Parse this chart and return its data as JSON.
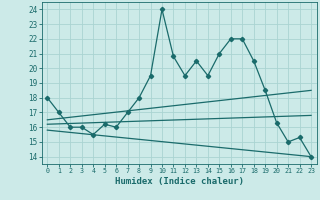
{
  "xlabel": "Humidex (Indice chaleur)",
  "ylabel": "",
  "background_color": "#cceae8",
  "grid_color": "#aad4d2",
  "line_color": "#1a6b6b",
  "xlim": [
    -0.5,
    23.5
  ],
  "ylim": [
    13.5,
    24.5
  ],
  "yticks": [
    14,
    15,
    16,
    17,
    18,
    19,
    20,
    21,
    22,
    23,
    24
  ],
  "xticks": [
    0,
    1,
    2,
    3,
    4,
    5,
    6,
    7,
    8,
    9,
    10,
    11,
    12,
    13,
    14,
    15,
    16,
    17,
    18,
    19,
    20,
    21,
    22,
    23
  ],
  "series1_x": [
    0,
    1,
    2,
    3,
    4,
    5,
    6,
    7,
    8,
    9,
    10,
    11,
    12,
    13,
    14,
    15,
    16,
    17,
    18,
    19,
    20,
    21,
    22,
    23
  ],
  "series1_y": [
    18,
    17,
    16,
    16,
    15.5,
    16.2,
    16,
    17,
    18,
    19.5,
    24,
    20.8,
    19.5,
    20.5,
    19.5,
    21,
    22,
    22,
    20.5,
    18.5,
    16.3,
    15,
    15.3,
    14
  ],
  "series2_x": [
    0,
    23
  ],
  "series2_y": [
    16.5,
    18.5
  ],
  "series3_x": [
    0,
    23
  ],
  "series3_y": [
    15.8,
    14.0
  ],
  "series4_x": [
    0,
    23
  ],
  "series4_y": [
    16.2,
    16.8
  ]
}
